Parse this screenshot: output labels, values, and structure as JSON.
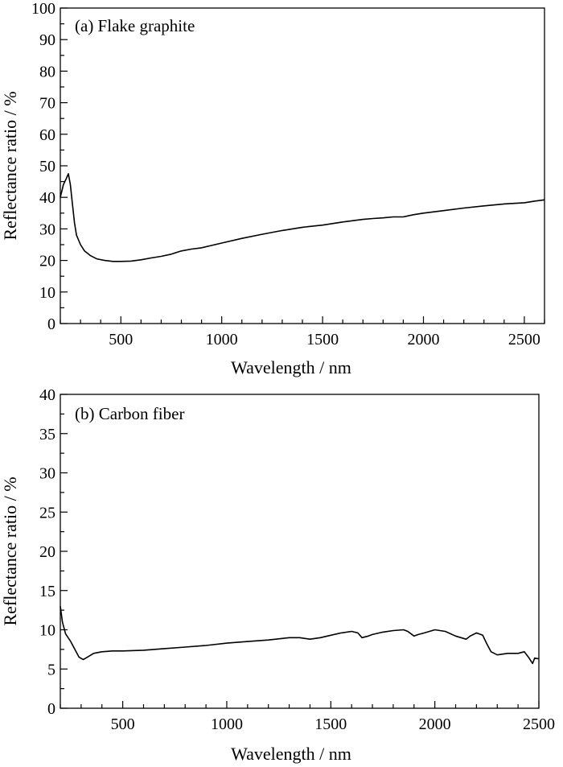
{
  "chart_data": [
    {
      "type": "line",
      "panel_label": "(a) Flake graphite",
      "xlabel": "Wavelength / nm",
      "ylabel": "Reflectance ratio / %",
      "xlim": [
        200,
        2600
      ],
      "ylim": [
        0,
        100
      ],
      "xticks": [
        500,
        1000,
        1500,
        2000,
        2500
      ],
      "yticks": [
        0,
        10,
        20,
        30,
        40,
        50,
        60,
        70,
        80,
        90,
        100
      ],
      "grid": false,
      "series": [
        {
          "color": "#000000",
          "x": [
            200,
            215,
            230,
            240,
            250,
            260,
            270,
            280,
            300,
            320,
            350,
            380,
            420,
            460,
            500,
            550,
            600,
            650,
            700,
            750,
            800,
            850,
            900,
            1000,
            1100,
            1200,
            1300,
            1400,
            1500,
            1600,
            1700,
            1750,
            1800,
            1850,
            1900,
            1950,
            2000,
            2100,
            2200,
            2300,
            2400,
            2500,
            2550,
            2600
          ],
          "y": [
            40,
            44,
            46,
            47.5,
            44,
            38,
            32,
            28,
            25,
            23,
            21.5,
            20.5,
            20,
            19.7,
            19.7,
            19.8,
            20.2,
            20.8,
            21.3,
            22,
            23,
            23.6,
            24,
            25.5,
            27,
            28.3,
            29.5,
            30.5,
            31.2,
            32.2,
            33,
            33.3,
            33.5,
            33.8,
            33.8,
            34.5,
            35,
            35.8,
            36.6,
            37.3,
            37.9,
            38.3,
            38.8,
            39.2
          ]
        }
      ]
    },
    {
      "type": "line",
      "panel_label": "(b) Carbon fiber",
      "xlabel": "Wavelength / nm",
      "ylabel": "Reflectance ratio / %",
      "xlim": [
        200,
        2500
      ],
      "ylim": [
        0,
        40
      ],
      "xticks": [
        500,
        1000,
        1500,
        2000,
        2500
      ],
      "yticks": [
        0,
        5,
        10,
        15,
        20,
        25,
        30,
        35,
        40
      ],
      "grid": false,
      "series": [
        {
          "color": "#000000",
          "x": [
            200,
            210,
            225,
            250,
            270,
            290,
            310,
            330,
            360,
            400,
            450,
            500,
            600,
            700,
            800,
            900,
            1000,
            1100,
            1200,
            1300,
            1350,
            1400,
            1450,
            1500,
            1550,
            1600,
            1630,
            1650,
            1680,
            1700,
            1750,
            1800,
            1850,
            1870,
            1900,
            1920,
            1950,
            2000,
            2050,
            2100,
            2150,
            2170,
            2200,
            2230,
            2250,
            2270,
            2300,
            2350,
            2400,
            2430,
            2450,
            2470,
            2480,
            2500
          ],
          "y": [
            13,
            11,
            9.5,
            8.5,
            7.5,
            6.5,
            6.2,
            6.5,
            7,
            7.2,
            7.3,
            7.3,
            7.4,
            7.6,
            7.8,
            8,
            8.3,
            8.5,
            8.7,
            9,
            9,
            8.8,
            9,
            9.3,
            9.6,
            9.8,
            9.6,
            9,
            9.2,
            9.4,
            9.7,
            9.9,
            10,
            9.8,
            9.2,
            9.4,
            9.6,
            10,
            9.8,
            9.2,
            8.8,
            9.2,
            9.6,
            9.3,
            8.2,
            7.2,
            6.8,
            7,
            7,
            7.2,
            6.5,
            5.7,
            6.4,
            6.3
          ]
        }
      ]
    }
  ]
}
